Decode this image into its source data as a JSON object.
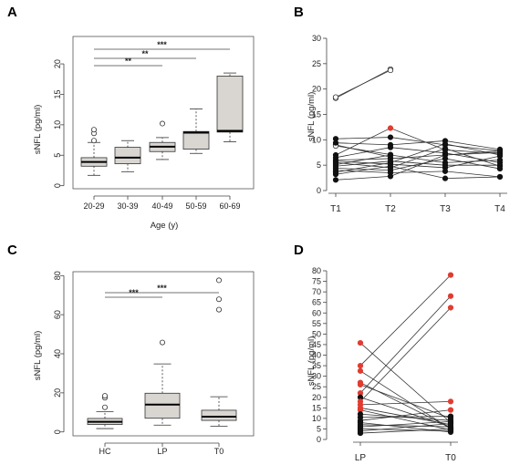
{
  "colors": {
    "box_fill": "#d9d6d2",
    "dot": "#111111",
    "highlight": "#e03c31",
    "line": "#333333"
  },
  "chart_data": [
    {
      "panel": "A",
      "type": "box",
      "ylabel": "sNFL (pg/ml)",
      "xlabel": "Age (y)",
      "categories": [
        "20-29",
        "30-39",
        "40-49",
        "50-59",
        "60-69"
      ],
      "boxes": [
        {
          "whislo": 1.7,
          "q1": 3.2,
          "med": 3.9,
          "q3": 4.6,
          "whishi": 7.1,
          "fliers": [
            7.4,
            8.6,
            9.2
          ]
        },
        {
          "whislo": 2.3,
          "q1": 3.6,
          "med": 4.6,
          "q3": 6.3,
          "whishi": 7.4,
          "fliers": []
        },
        {
          "whislo": 4.3,
          "q1": 5.6,
          "med": 6.4,
          "q3": 7.1,
          "whishi": 7.9,
          "fliers": [
            10.2
          ]
        },
        {
          "whislo": 5.3,
          "q1": 6.0,
          "med": 8.7,
          "q3": 8.9,
          "whishi": 12.6,
          "fliers": []
        },
        {
          "whislo": 7.2,
          "q1": 8.8,
          "med": 9.0,
          "q3": 18.0,
          "whishi": 18.5,
          "fliers": []
        }
      ],
      "ylim": [
        -0.5,
        24.5
      ],
      "yticks": [
        0,
        5,
        10,
        15,
        20
      ],
      "significance": [
        {
          "from": 0,
          "to": 2,
          "label": "**"
        },
        {
          "from": 0,
          "to": 3,
          "label": "**"
        },
        {
          "from": 0,
          "to": 4,
          "label": "***"
        }
      ]
    },
    {
      "panel": "B",
      "type": "line",
      "ylabel": "sNFL (pg/ml)",
      "x": [
        "T1",
        "T2",
        "T3",
        "T4"
      ],
      "ylim": [
        0,
        30
      ],
      "yticks": [
        0,
        5,
        10,
        15,
        20,
        25,
        30
      ],
      "series": [
        {
          "values": [
            18.2,
            23.9,
            null,
            null
          ],
          "marker": "open"
        },
        {
          "values": [
            18.4,
            23.7,
            null,
            null
          ],
          "marker": "open"
        },
        {
          "values": [
            9.0,
            6.6,
            null,
            null
          ],
          "marker": "open"
        },
        {
          "values": [
            8.8,
            7.1,
            null,
            null
          ],
          "marker": "open"
        },
        {
          "values": [
            10.2,
            10.5,
            9.0,
            7.8
          ],
          "marker": "filled"
        },
        {
          "values": [
            9.4,
            9.0,
            9.8,
            8.1
          ],
          "marker": "filled"
        },
        {
          "values": [
            7.0,
            12.3,
            8.0,
            7.3
          ],
          "marker": "filled",
          "highlight_index": 1
        },
        {
          "values": [
            6.5,
            8.5,
            7.4,
            5.5
          ],
          "marker": "filled"
        },
        {
          "values": [
            6.0,
            6.3,
            7.0,
            7.5
          ],
          "marker": "filled"
        },
        {
          "values": [
            5.8,
            5.2,
            4.5,
            6.8
          ],
          "marker": "filled"
        },
        {
          "values": [
            5.5,
            4.5,
            8.3,
            4.8
          ],
          "marker": "filled"
        },
        {
          "values": [
            5.1,
            7.0,
            5.5,
            6.0
          ],
          "marker": "filled"
        },
        {
          "values": [
            4.8,
            5.8,
            5.0,
            5.0
          ],
          "marker": "filled"
        },
        {
          "values": [
            4.4,
            4.0,
            6.3,
            4.3
          ],
          "marker": "filled"
        },
        {
          "values": [
            4.0,
            3.5,
            3.8,
            2.7
          ],
          "marker": "filled"
        },
        {
          "values": [
            3.6,
            5.5,
            9.2,
            7.0
          ],
          "marker": "filled"
        },
        {
          "values": [
            3.2,
            4.8,
            2.4,
            2.7
          ],
          "marker": "filled"
        },
        {
          "values": [
            2.1,
            2.8,
            7.0,
            7.8
          ],
          "marker": "filled"
        }
      ]
    },
    {
      "panel": "C",
      "type": "box",
      "ylabel": "sNFL (pg/ml)",
      "categories": [
        "HC",
        "LP",
        "T0"
      ],
      "boxes": [
        {
          "whislo": 1.7,
          "q1": 3.8,
          "med": 5.2,
          "q3": 6.9,
          "whishi": 10.3,
          "fliers": [
            12.6,
            17.5,
            18.5
          ]
        },
        {
          "whislo": 3.5,
          "q1": 7.0,
          "med": 14.0,
          "q3": 19.8,
          "whishi": 34.8,
          "fliers": [
            45.8
          ]
        },
        {
          "whislo": 2.9,
          "q1": 5.9,
          "med": 7.8,
          "q3": 11.1,
          "whishi": 18.0,
          "fliers": [
            62.6,
            67.9,
            77.6
          ]
        }
      ],
      "ylim": [
        -2,
        82
      ],
      "yticks": [
        0,
        20,
        40,
        60,
        80
      ],
      "significance": [
        {
          "from": 0,
          "to": 1,
          "label": "***"
        },
        {
          "from": 0,
          "to": 2,
          "label": "***"
        }
      ]
    },
    {
      "panel": "D",
      "type": "line",
      "ylabel": "sNFL (pg/ml)",
      "x": [
        "LP",
        "T0"
      ],
      "ylim": [
        0,
        80
      ],
      "yticks": [
        0,
        5,
        10,
        15,
        20,
        25,
        30,
        35,
        40,
        45,
        50,
        55,
        60,
        65,
        70,
        75,
        80
      ],
      "series": [
        {
          "values": [
            45.8,
            8.0
          ],
          "colors": [
            "red",
            "black"
          ]
        },
        {
          "values": [
            35.0,
            78.0
          ],
          "colors": [
            "red",
            "red"
          ]
        },
        {
          "values": [
            32.5,
            5.0
          ],
          "colors": [
            "red",
            "black"
          ]
        },
        {
          "values": [
            27.0,
            5.5
          ],
          "colors": [
            "red",
            "black"
          ]
        },
        {
          "values": [
            26.0,
            10.0
          ],
          "colors": [
            "red",
            "black"
          ]
        },
        {
          "values": [
            22.0,
            68.0
          ],
          "colors": [
            "red",
            "red"
          ]
        },
        {
          "values": [
            20.0,
            6.0
          ],
          "colors": [
            "black",
            "black"
          ]
        },
        {
          "values": [
            18.0,
            62.5
          ],
          "colors": [
            "red",
            "red"
          ]
        },
        {
          "values": [
            16.5,
            18.0
          ],
          "colors": [
            "red",
            "red"
          ]
        },
        {
          "values": [
            15.0,
            7.0
          ],
          "colors": [
            "red",
            "black"
          ]
        },
        {
          "values": [
            14.0,
            4.5
          ],
          "colors": [
            "red",
            "black"
          ]
        },
        {
          "values": [
            12.0,
            9.0
          ],
          "colors": [
            "black",
            "black"
          ]
        },
        {
          "values": [
            10.5,
            11.0
          ],
          "colors": [
            "black",
            "black"
          ]
        },
        {
          "values": [
            9.0,
            14.0
          ],
          "colors": [
            "black",
            "red"
          ]
        },
        {
          "values": [
            8.0,
            3.5
          ],
          "colors": [
            "black",
            "black"
          ]
        },
        {
          "values": [
            7.0,
            6.0
          ],
          "colors": [
            "black",
            "black"
          ]
        },
        {
          "values": [
            6.0,
            8.5
          ],
          "colors": [
            "black",
            "black"
          ]
        },
        {
          "values": [
            5.0,
            4.0
          ],
          "colors": [
            "black",
            "black"
          ]
        },
        {
          "values": [
            4.0,
            7.5
          ],
          "colors": [
            "black",
            "black"
          ]
        },
        {
          "values": [
            3.0,
            5.0
          ],
          "colors": [
            "black",
            "black"
          ]
        }
      ]
    }
  ]
}
